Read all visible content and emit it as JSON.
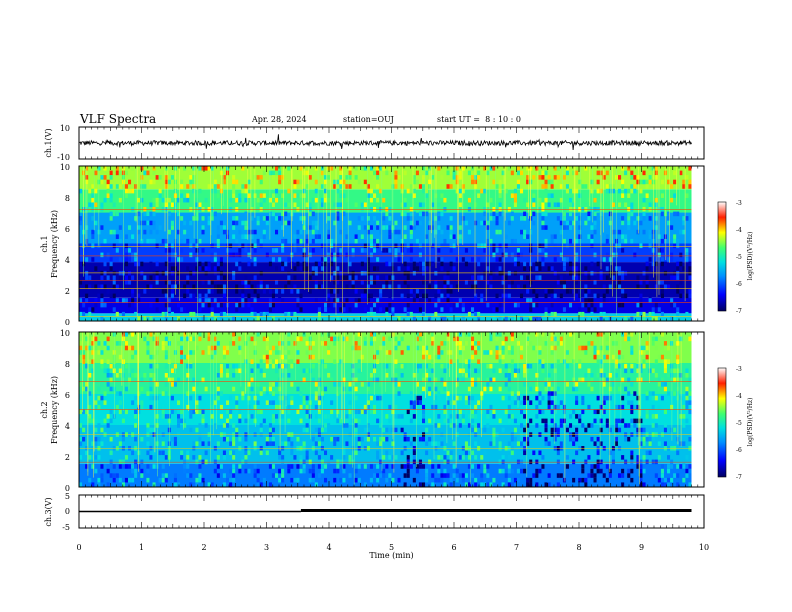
{
  "header": {
    "title": "VLF Spectra",
    "date": "Apr. 28, 2024",
    "station": "station=OUJ",
    "start_ut": "start UT =  8 : 10 : 0"
  },
  "colors": {
    "trace": "#000000",
    "colormap": [
      "#000080",
      "#0000ff",
      "#0080ff",
      "#00e0e0",
      "#40ff80",
      "#ffff00",
      "#ff8000",
      "#ff0000",
      "#ffffff"
    ]
  },
  "chart_data": [
    {
      "type": "line",
      "panel": "ch1-waveform",
      "ylabel": "ch.1(V)",
      "ylim": [
        -10,
        10
      ],
      "ytick_labels": [
        "10",
        "-10"
      ],
      "x_range_min": [
        0,
        10
      ],
      "data_extent_min": 9.8,
      "baseline": 0,
      "noise_amplitude": 1.5
    },
    {
      "type": "heatmap",
      "panel": "ch1-spectrogram",
      "ylabel_top": "ch.1",
      "ylabel": "Frequency (kHz)",
      "ylim": [
        0,
        10
      ],
      "ytick_labels": [
        "0",
        "2",
        "4",
        "6",
        "8",
        "10"
      ],
      "colorbar": {
        "label": "log(PSD)(V²/Hz)",
        "range": [
          -7,
          -3
        ],
        "tick_labels": [
          "-3",
          "-4",
          "-5",
          "-6",
          "-7"
        ]
      },
      "bands": [
        {
          "f": [
            0,
            0.5
          ],
          "level": -5.3
        },
        {
          "f": [
            0.5,
            1.5
          ],
          "level": -6.5
        },
        {
          "f": [
            1.5,
            3.8
          ],
          "level": -6.7
        },
        {
          "f": [
            3.8,
            5.0
          ],
          "level": -6.1
        },
        {
          "f": [
            5.0,
            7.0
          ],
          "level": -5.6
        },
        {
          "f": [
            7.0,
            8.5
          ],
          "level": -4.8
        },
        {
          "f": [
            8.5,
            10
          ],
          "level": -4.4
        }
      ],
      "tones_khz": [
        0.3,
        1.2,
        2.1,
        2.6,
        3.1,
        4.2,
        4.8,
        7.2
      ]
    },
    {
      "type": "heatmap",
      "panel": "ch2-spectrogram",
      "ylabel_top": "ch.2",
      "ylabel": "Frequency (kHz)",
      "ylim": [
        0,
        10
      ],
      "ytick_labels": [
        "0",
        "2",
        "4",
        "6",
        "8",
        "10"
      ],
      "colorbar": {
        "label": "log(PSD)(V²/Hz)",
        "range": [
          -7,
          -3
        ],
        "tick_labels": [
          "-3",
          "-4",
          "-5",
          "-6",
          "-7"
        ]
      },
      "bands": [
        {
          "f": [
            0,
            1.5
          ],
          "level": -5.8
        },
        {
          "f": [
            1.5,
            4.0
          ],
          "level": -5.4
        },
        {
          "f": [
            4.0,
            6.0
          ],
          "level": -5.2
        },
        {
          "f": [
            6.0,
            8.0
          ],
          "level": -4.9
        },
        {
          "f": [
            8.0,
            10
          ],
          "level": -4.5
        }
      ],
      "quiet_patches_min": [
        [
          5.1,
          5.5
        ],
        [
          7.1,
          9.0
        ]
      ],
      "tones_khz": [
        1.6,
        2.5,
        3.4,
        5.0,
        6.8
      ]
    },
    {
      "type": "line",
      "panel": "ch3-waveform",
      "ylabel": "ch.3(V)",
      "ylim": [
        -5,
        5
      ],
      "ytick_labels": [
        "5",
        "0",
        "-5"
      ],
      "segments": [
        {
          "x": [
            0,
            3.55
          ],
          "y": 0
        },
        {
          "x": [
            3.55,
            9.8
          ],
          "y": 0.3
        }
      ],
      "xlabel": "Time (min)",
      "xtick_labels": [
        "0",
        "1",
        "2",
        "3",
        "4",
        "5",
        "6",
        "7",
        "8",
        "9",
        "10"
      ],
      "xlim": [
        0,
        10
      ]
    }
  ]
}
